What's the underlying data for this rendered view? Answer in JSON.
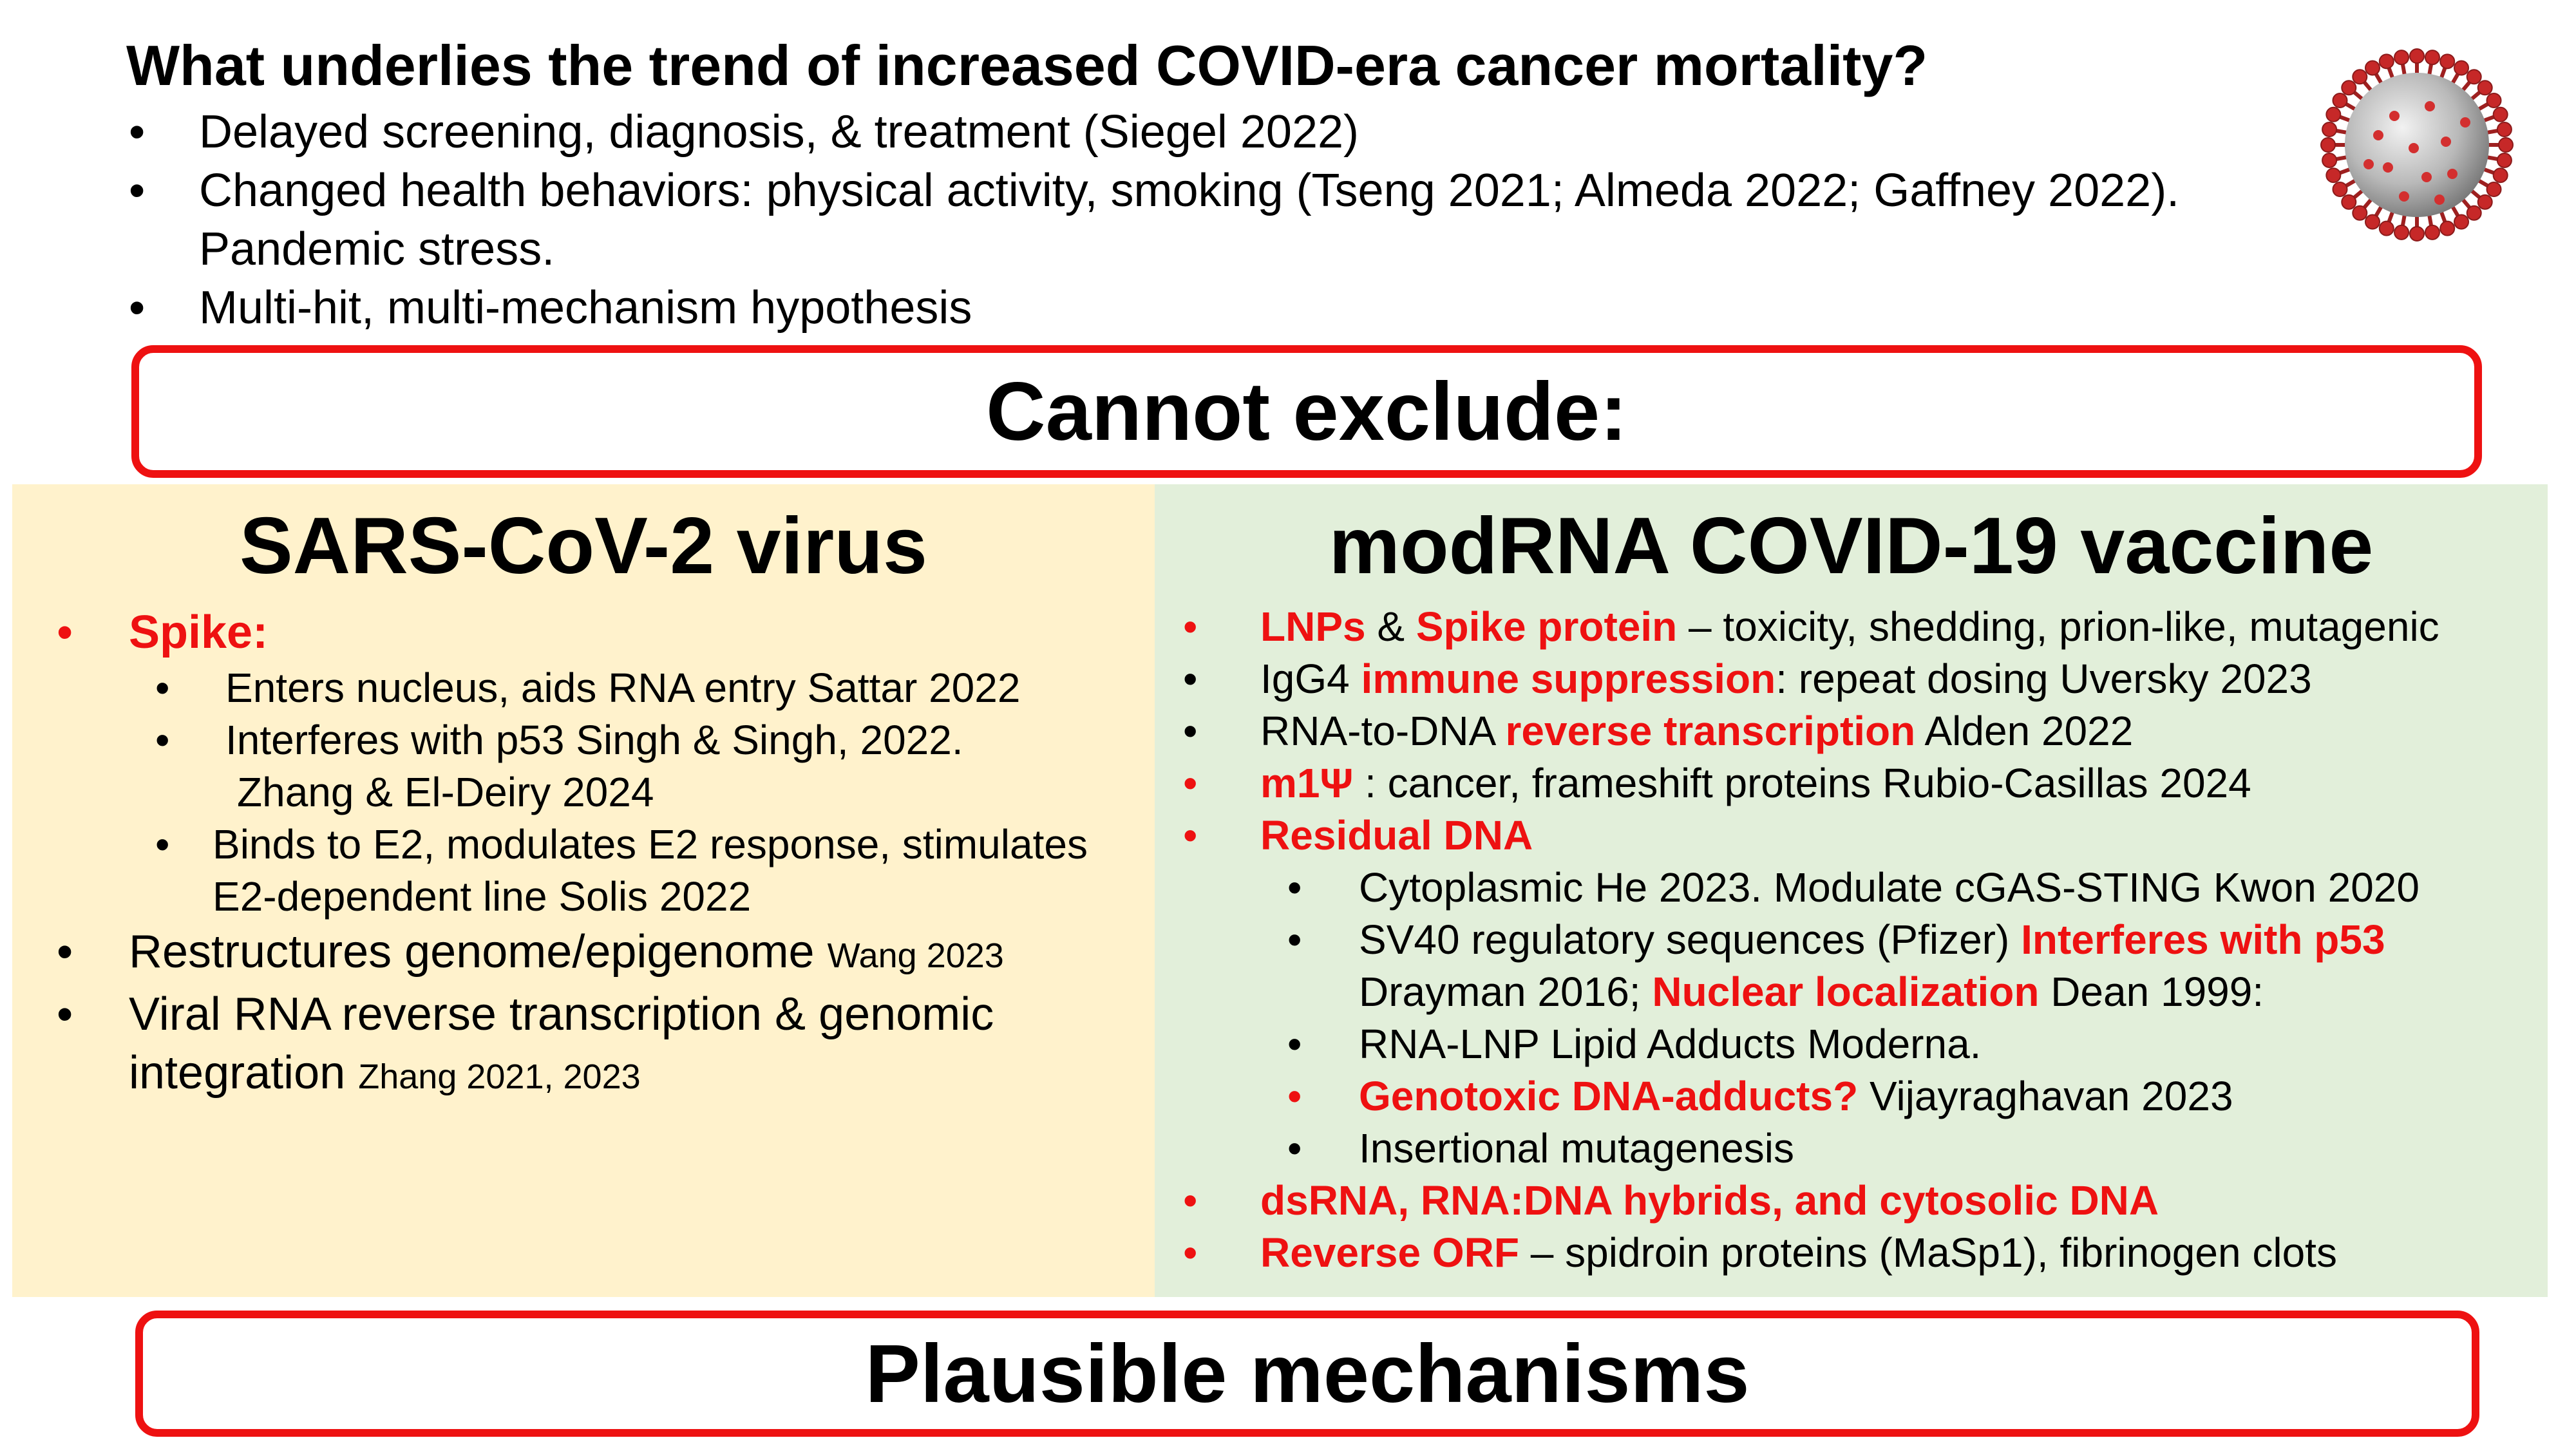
{
  "title": "What underlies the trend of increased COVID-era cancer mortality?",
  "intro": {
    "items": [
      "Delayed screening, diagnosis, & treatment (Siegel 2022)",
      "Changed health behaviors: physical activity, smoking (Tseng 2021; Almeda 2022; Gaffney 2022).",
      "Pandemic stress.",
      "Multi-hit, multi-mechanism hypothesis"
    ]
  },
  "cannot_exclude": "Cannot exclude:",
  "plausible": "Plausible mechanisms",
  "left": {
    "heading": "SARS-CoV-2 virus",
    "spike": "Spike:",
    "spike_sub1": "Enters nucleus, aids RNA entry Sattar 2022",
    "spike_sub2a": "Interferes with p53 Singh & Singh, 2022.",
    "spike_sub2b": "Zhang & El-Deiry 2024",
    "spike_sub3a": "Binds to E2, modulates E2 response, stimulates",
    "spike_sub3b": "E2-dependent line Solis 2022",
    "genome_text": "Restructures genome/epigenome",
    "genome_cite": "Wang 2023",
    "viral_a": "Viral RNA reverse transcription & genomic",
    "viral_b": "integration",
    "viral_cite": "Zhang 2021, 2023"
  },
  "right": {
    "heading": "modRNA COVID-19 vaccine",
    "lnp_red1": "LNPs",
    "lnp_amp": " & ",
    "lnp_red2": "Spike protein",
    "lnp_rest": " – toxicity, shedding, prion-like, mutagenic",
    "igg_pre": "IgG4 ",
    "igg_red": "immune suppression",
    "igg_rest": ": repeat dosing Uversky 2023",
    "rna_pre": "RNA-to-DNA ",
    "rna_red": "reverse transcription",
    "rna_rest": " Alden 2022",
    "m1_red": "m1Ψ",
    "m1_rest": " : cancer, frameshift proteins Rubio-Casillas 2024",
    "residual": "Residual DNA",
    "sub_cyto": "Cytoplasmic He  2023. Modulate cGAS-STING Kwon 2020",
    "sub_sv40_pre": "SV40 regulatory sequences (Pfizer) ",
    "sub_sv40_red": "Interferes with p53",
    "sub_dray_pre": "Drayman 2016; ",
    "sub_dray_red": "Nuclear localization",
    "sub_dray_rest": " Dean 1999:",
    "sub_lnp": "RNA-LNP Lipid Adducts Moderna.",
    "sub_geno_red": "Genotoxic DNA-adducts?",
    "sub_geno_rest": " Vijayraghavan 2023",
    "sub_ins": "Insertional mutagenesis",
    "dsrna": "dsRNA, RNA:DNA hybrids, and cytosolic DNA",
    "rorf_red": "Reverse ORF",
    "rorf_rest": " – spidroin proteins (MaSp1), fibrinogen clots"
  }
}
